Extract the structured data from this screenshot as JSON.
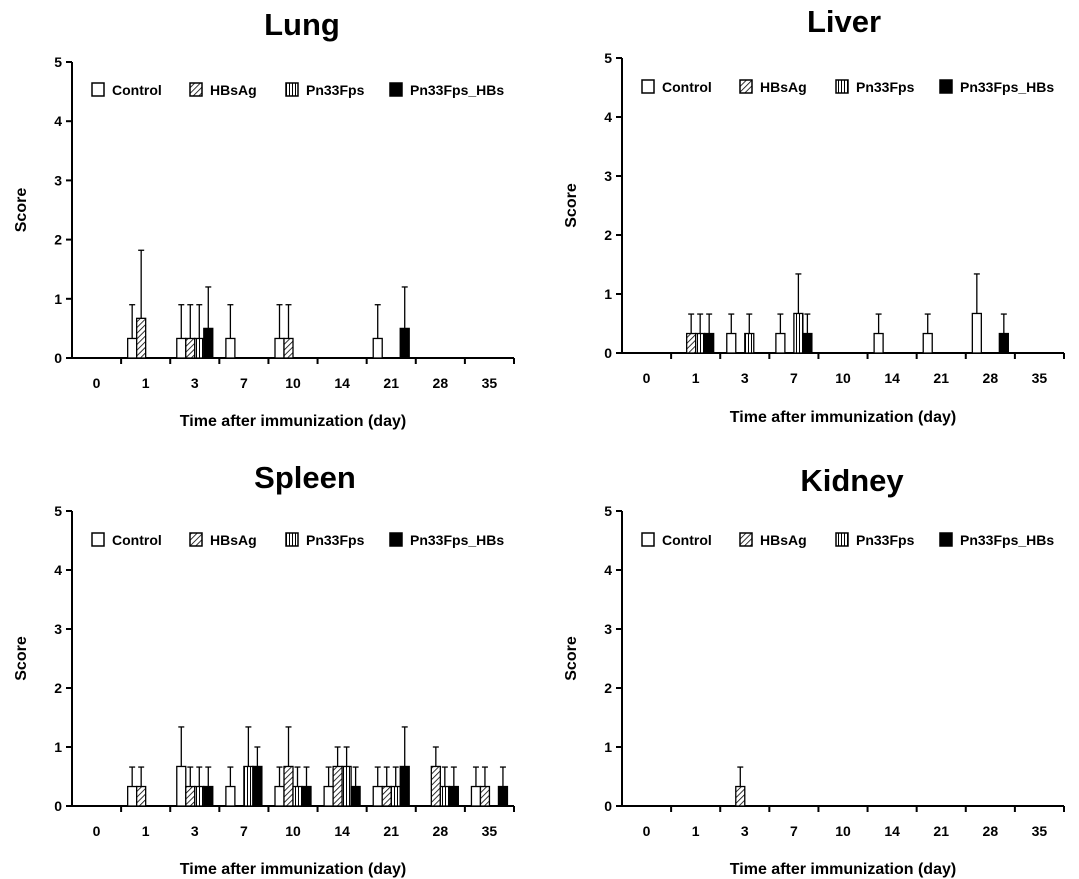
{
  "chart_data": [
    {
      "type": "bar",
      "title": "Lung",
      "xlabel": "Time after immunization (day)",
      "ylabel": "Score",
      "ylim": [
        0,
        5
      ],
      "yticks": [
        "0",
        "1",
        "2",
        "3",
        "4",
        "5"
      ],
      "categories": [
        "0",
        "1",
        "3",
        "7",
        "10",
        "14",
        "21",
        "28",
        "35"
      ],
      "legend_position": "top",
      "series": [
        {
          "name": "Control",
          "values": [
            0,
            0.33,
            0.33,
            0.33,
            0.33,
            0,
            0.33,
            0,
            0
          ],
          "errors": [
            0,
            0.57,
            0.57,
            0.57,
            0.57,
            0,
            0.57,
            0,
            0
          ]
        },
        {
          "name": "HBsAg",
          "values": [
            0,
            0.67,
            0.33,
            0,
            0.33,
            0,
            0,
            0,
            0
          ],
          "errors": [
            0,
            1.15,
            0.57,
            0,
            0.57,
            0,
            0,
            0,
            0
          ]
        },
        {
          "name": "Pn33Fps",
          "values": [
            0,
            0,
            0.33,
            0,
            0,
            0,
            0,
            0,
            0
          ],
          "errors": [
            0,
            0,
            0.57,
            0,
            0,
            0,
            0,
            0,
            0
          ]
        },
        {
          "name": "Pn33Fps_HBs",
          "values": [
            0,
            0,
            0.5,
            0,
            0,
            0,
            0.5,
            0,
            0
          ],
          "errors": [
            0,
            0,
            0.7,
            0,
            0,
            0,
            0.7,
            0,
            0
          ]
        }
      ]
    },
    {
      "type": "bar",
      "title": "Liver",
      "xlabel": "Time after immunization (day)",
      "ylabel": "Score",
      "ylim": [
        0,
        5
      ],
      "yticks": [
        "0",
        "1",
        "2",
        "3",
        "4",
        "5"
      ],
      "categories": [
        "0",
        "1",
        "3",
        "7",
        "10",
        "14",
        "21",
        "28",
        "35"
      ],
      "legend_position": "top",
      "series": [
        {
          "name": "Control",
          "values": [
            0,
            0,
            0.33,
            0.33,
            0,
            0.33,
            0.33,
            0.67,
            0
          ],
          "errors": [
            0,
            0,
            0.33,
            0.33,
            0,
            0.33,
            0.33,
            0.67,
            0
          ]
        },
        {
          "name": "HBsAg",
          "values": [
            0,
            0.33,
            0,
            0,
            0,
            0,
            0,
            0,
            0
          ],
          "errors": [
            0,
            0.33,
            0,
            0,
            0,
            0,
            0,
            0,
            0
          ]
        },
        {
          "name": "Pn33Fps",
          "values": [
            0,
            0.33,
            0.33,
            0.67,
            0,
            0,
            0,
            0,
            0
          ],
          "errors": [
            0,
            0.33,
            0.33,
            0.67,
            0,
            0,
            0,
            0,
            0
          ]
        },
        {
          "name": "Pn33Fps_HBs",
          "values": [
            0,
            0.33,
            0,
            0.33,
            0,
            0,
            0,
            0.33,
            0
          ],
          "errors": [
            0,
            0.33,
            0,
            0.33,
            0,
            0,
            0,
            0.33,
            0
          ]
        }
      ]
    },
    {
      "type": "bar",
      "title": "Spleen",
      "xlabel": "Time after immunization (day)",
      "ylabel": "Score",
      "ylim": [
        0,
        5
      ],
      "yticks": [
        "0",
        "1",
        "2",
        "3",
        "4",
        "5"
      ],
      "categories": [
        "0",
        "1",
        "3",
        "7",
        "10",
        "14",
        "21",
        "28",
        "35"
      ],
      "legend_position": "top",
      "series": [
        {
          "name": "Control",
          "values": [
            0,
            0.33,
            0.67,
            0.33,
            0.33,
            0.33,
            0.33,
            0,
            0.33
          ],
          "errors": [
            0,
            0.33,
            0.67,
            0.33,
            0.33,
            0.33,
            0.33,
            0,
            0.33
          ]
        },
        {
          "name": "HBsAg",
          "values": [
            0,
            0.33,
            0.33,
            0,
            0.67,
            0.67,
            0.33,
            0.67,
            0.33
          ],
          "errors": [
            0,
            0.33,
            0.33,
            0,
            0.67,
            0.33,
            0.33,
            0.33,
            0.33
          ]
        },
        {
          "name": "Pn33Fps",
          "values": [
            0,
            0,
            0.33,
            0.67,
            0.33,
            0.67,
            0.33,
            0.33,
            0
          ],
          "errors": [
            0,
            0,
            0.33,
            0.67,
            0.33,
            0.33,
            0.33,
            0.33,
            0
          ]
        },
        {
          "name": "Pn33Fps_HBs",
          "values": [
            0,
            0,
            0.33,
            0.67,
            0.33,
            0.33,
            0.67,
            0.33,
            0.33
          ],
          "errors": [
            0,
            0,
            0.33,
            0.33,
            0.33,
            0.33,
            0.67,
            0.33,
            0.33
          ]
        }
      ]
    },
    {
      "type": "bar",
      "title": "Kidney",
      "xlabel": "Time after immunization (day)",
      "ylabel": "Score",
      "ylim": [
        0,
        5
      ],
      "yticks": [
        "0",
        "1",
        "2",
        "3",
        "4",
        "5"
      ],
      "categories": [
        "0",
        "1",
        "3",
        "7",
        "10",
        "14",
        "21",
        "28",
        "35"
      ],
      "legend_position": "top",
      "series": [
        {
          "name": "Control",
          "values": [
            0,
            0,
            0,
            0,
            0,
            0,
            0,
            0,
            0
          ],
          "errors": [
            0,
            0,
            0,
            0,
            0,
            0,
            0,
            0,
            0
          ]
        },
        {
          "name": "HBsAg",
          "values": [
            0,
            0,
            0.33,
            0,
            0,
            0,
            0,
            0,
            0
          ],
          "errors": [
            0,
            0,
            0.33,
            0,
            0,
            0,
            0,
            0,
            0
          ]
        },
        {
          "name": "Pn33Fps",
          "values": [
            0,
            0,
            0,
            0,
            0,
            0,
            0,
            0,
            0
          ],
          "errors": [
            0,
            0,
            0,
            0,
            0,
            0,
            0,
            0,
            0
          ]
        },
        {
          "name": "Pn33Fps_HBs",
          "values": [
            0,
            0,
            0,
            0,
            0,
            0,
            0,
            0,
            0
          ],
          "errors": [
            0,
            0,
            0,
            0,
            0,
            0,
            0,
            0,
            0
          ]
        }
      ]
    }
  ]
}
